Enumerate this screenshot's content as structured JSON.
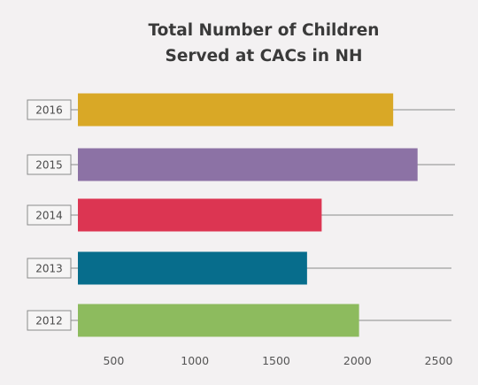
{
  "chart_data": {
    "type": "bar",
    "orientation": "horizontal",
    "title_lines": [
      "Total Number of Children",
      "Served at CACs in NH"
    ],
    "categories": [
      "2016",
      "2015",
      "2014",
      "2013",
      "2012"
    ],
    "values": [
      2220,
      2370,
      1780,
      1690,
      2010
    ],
    "colors": [
      "#d9a826",
      "#8c72a5",
      "#dc3552",
      "#076d8c",
      "#8dbb5e"
    ],
    "xticks": [
      500,
      1000,
      1500,
      2000,
      2500
    ],
    "xlim": [
      280,
      2800
    ],
    "grid": false,
    "legend": "none"
  }
}
